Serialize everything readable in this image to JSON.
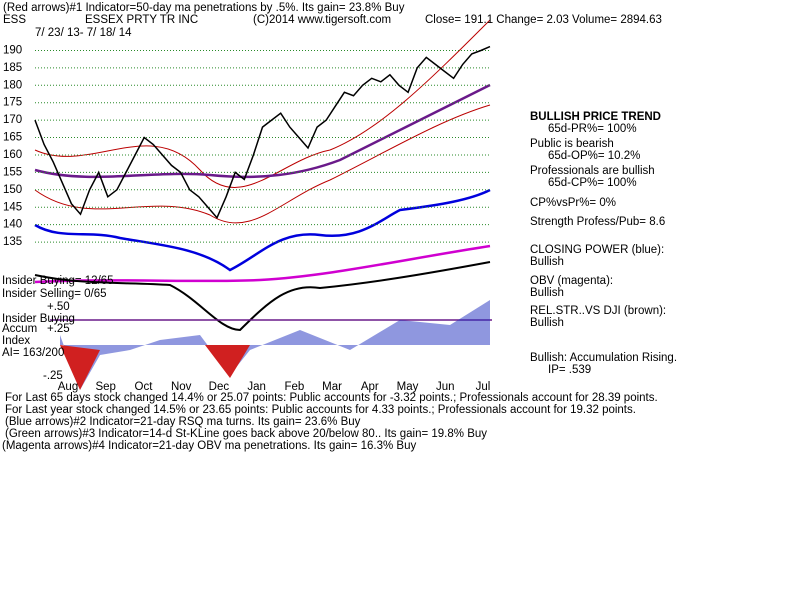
{
  "chart_data": {
    "type": "line",
    "title": "ESSEX PRTY TR INC",
    "ticker": "ESS",
    "copyright": "(C)2014 www.tigersoft.com",
    "quote": "Close=  191.1   Change= 2.03 Volume= 2894.63",
    "date_range": "7/ 23/ 13-  7/ 18/ 14",
    "months": [
      "Aug",
      "Sep",
      "Oct",
      "Nov",
      "Dec",
      "Jan",
      "Feb",
      "Mar",
      "Apr",
      "May",
      "Jun",
      "Jul"
    ],
    "series": [
      {
        "name": "Price",
        "color": "#000000",
        "values": [
          170,
          163,
          158,
          152,
          146,
          143,
          150,
          155,
          148,
          150,
          155,
          160,
          165,
          163,
          160,
          157,
          155,
          150,
          148,
          145,
          142,
          148,
          155,
          153,
          160,
          168,
          170,
          172,
          168,
          165,
          162,
          168,
          170,
          174,
          178,
          177,
          180,
          182,
          181,
          183,
          180,
          178,
          185,
          188,
          186,
          184,
          182,
          186,
          189,
          190,
          191.1
        ]
      }
    ],
    "ylim": [
      131,
      193
    ],
    "yticks": [
      190,
      185,
      180,
      175,
      170,
      165,
      160,
      155,
      150,
      145,
      140,
      135
    ],
    "grid": true,
    "annotations": [
      "(Red arrows)#1 Indicator=50-day ma penetrations by .5%. Its gain= 23.8% Buy",
      "BULLISH PRICE TREND",
      "65d-PR%= 100%",
      "Public is bearish",
      "65d-OP%= 10.2%",
      "Professionals are bullish",
      "65d-CP%= 100%",
      "CP%vsPr%=  0%",
      "Strength Profess/Pub= 8.6",
      "CLOSING POWER (blue):",
      "Bullish",
      "OBV (magenta):",
      "Bullish",
      "REL.STR..VS DJI (brown):",
      "Bullish",
      "Bullish: Accumulation Rising.",
      "IP=  .539",
      "Insider Buying= 12/65",
      "Insider Selling= 0/65",
      "+.50",
      "Insider Buying",
      "Accum",
      "+.25",
      "Index",
      "AI= 163/200",
      "-.25",
      "For Last 65 days stock changed  14.4% or  25.07 points:  Public accounts for -3.32 points.;  Professionals account for  28.39 points.",
      "For Last year stock changed  14.5% or  23.65 points:  Public accounts for  4.33 points.;  Professionals account for  19.32 points.",
      "(Blue arrows)#2 Indicator=21-day RSQ ma turns. Its gain= 23.6% Buy",
      "(Green arrows)#3 Indicator=14-d St-KLine goes back above 20/below 80.. Its gain= 19.8% Buy",
      "(Magenta arrows)#4 Indicator=21-day OBV ma penetrations. Its gain= 16.3% Buy"
    ]
  }
}
